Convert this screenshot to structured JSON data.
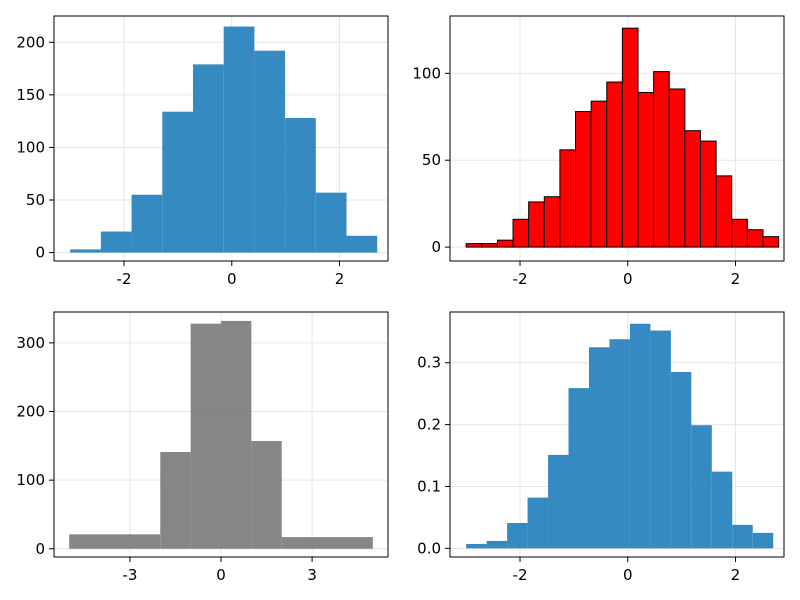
{
  "chart_data": [
    {
      "type": "bar",
      "panel": "top-left",
      "color": "#2a84bf",
      "grid": true,
      "bins": [
        {
          "x0": -3.0,
          "x1": -2.43,
          "value": 3
        },
        {
          "x0": -2.43,
          "x1": -1.86,
          "value": 20
        },
        {
          "x0": -1.86,
          "x1": -1.29,
          "value": 55
        },
        {
          "x0": -1.29,
          "x1": -0.72,
          "value": 134
        },
        {
          "x0": -0.72,
          "x1": -0.15,
          "value": 179
        },
        {
          "x0": -0.15,
          "x1": 0.42,
          "value": 215
        },
        {
          "x0": 0.42,
          "x1": 0.99,
          "value": 192
        },
        {
          "x0": 0.99,
          "x1": 1.56,
          "value": 128
        },
        {
          "x0": 1.56,
          "x1": 2.13,
          "value": 57
        },
        {
          "x0": 2.13,
          "x1": 2.7,
          "value": 16
        }
      ],
      "xlim": [
        -3.3,
        2.9
      ],
      "ylim": [
        -8,
        225
      ],
      "xticks": [
        -2,
        0,
        2
      ],
      "xtick_labels": [
        "-2",
        "0",
        "2"
      ],
      "yticks": [
        0,
        50,
        100,
        150,
        200
      ],
      "ytick_labels": [
        "0",
        "50",
        "100",
        "150",
        "200"
      ]
    },
    {
      "type": "bar",
      "panel": "top-right",
      "color": "#ff0000",
      "edge_color": "#000000",
      "grid": true,
      "bins": [
        {
          "x0": -3.0,
          "x1": -2.71,
          "value": 2
        },
        {
          "x0": -2.71,
          "x1": -2.42,
          "value": 2
        },
        {
          "x0": -2.42,
          "x1": -2.13,
          "value": 4
        },
        {
          "x0": -2.13,
          "x1": -1.84,
          "value": 16
        },
        {
          "x0": -1.84,
          "x1": -1.55,
          "value": 26
        },
        {
          "x0": -1.55,
          "x1": -1.26,
          "value": 29
        },
        {
          "x0": -1.26,
          "x1": -0.97,
          "value": 56
        },
        {
          "x0": -0.97,
          "x1": -0.68,
          "value": 78
        },
        {
          "x0": -0.68,
          "x1": -0.39,
          "value": 84
        },
        {
          "x0": -0.39,
          "x1": -0.1,
          "value": 95
        },
        {
          "x0": -0.1,
          "x1": 0.19,
          "value": 126
        },
        {
          "x0": 0.19,
          "x1": 0.48,
          "value": 89
        },
        {
          "x0": 0.48,
          "x1": 0.77,
          "value": 101
        },
        {
          "x0": 0.77,
          "x1": 1.06,
          "value": 91
        },
        {
          "x0": 1.06,
          "x1": 1.35,
          "value": 67
        },
        {
          "x0": 1.35,
          "x1": 1.64,
          "value": 61
        },
        {
          "x0": 1.64,
          "x1": 1.93,
          "value": 41
        },
        {
          "x0": 1.93,
          "x1": 2.22,
          "value": 16
        },
        {
          "x0": 2.22,
          "x1": 2.51,
          "value": 10
        },
        {
          "x0": 2.51,
          "x1": 2.8,
          "value": 6
        }
      ],
      "xlim": [
        -3.3,
        2.9
      ],
      "ylim": [
        -8,
        133
      ],
      "xticks": [
        -2,
        0,
        2
      ],
      "xtick_labels": [
        "-2",
        "0",
        "2"
      ],
      "yticks": [
        0,
        50,
        100
      ],
      "ytick_labels": [
        "0",
        "50",
        "100"
      ]
    },
    {
      "type": "bar",
      "panel": "bottom-left",
      "color": "#808080",
      "grid": true,
      "bins": [
        {
          "x0": -5.0,
          "x1": -2.0,
          "value": 21
        },
        {
          "x0": -2.0,
          "x1": -1.0,
          "value": 141
        },
        {
          "x0": -1.0,
          "x1": 0.0,
          "value": 328
        },
        {
          "x0": 0.0,
          "x1": 1.0,
          "value": 332
        },
        {
          "x0": 1.0,
          "x1": 2.0,
          "value": 157
        },
        {
          "x0": 2.0,
          "x1": 5.0,
          "value": 17
        }
      ],
      "xlim": [
        -5.5,
        5.5
      ],
      "ylim": [
        -12,
        345
      ],
      "xticks": [
        -3,
        0,
        3
      ],
      "xtick_labels": [
        "-3",
        "0",
        "3"
      ],
      "yticks": [
        0,
        100,
        200,
        300
      ],
      "ytick_labels": [
        "0",
        "100",
        "200",
        "300"
      ]
    },
    {
      "type": "bar",
      "panel": "bottom-right",
      "color": "#2a84bf",
      "grid": true,
      "bins": [
        {
          "x0": -3.0,
          "x1": -2.62,
          "value": 0.007
        },
        {
          "x0": -2.62,
          "x1": -2.24,
          "value": 0.012
        },
        {
          "x0": -2.24,
          "x1": -1.86,
          "value": 0.041
        },
        {
          "x0": -1.86,
          "x1": -1.48,
          "value": 0.082
        },
        {
          "x0": -1.48,
          "x1": -1.1,
          "value": 0.151
        },
        {
          "x0": -1.1,
          "x1": -0.72,
          "value": 0.259
        },
        {
          "x0": -0.72,
          "x1": -0.34,
          "value": 0.325
        },
        {
          "x0": -0.34,
          "x1": 0.04,
          "value": 0.338
        },
        {
          "x0": 0.04,
          "x1": 0.42,
          "value": 0.363
        },
        {
          "x0": 0.42,
          "x1": 0.8,
          "value": 0.352
        },
        {
          "x0": 0.8,
          "x1": 1.18,
          "value": 0.285
        },
        {
          "x0": 1.18,
          "x1": 1.56,
          "value": 0.199
        },
        {
          "x0": 1.56,
          "x1": 1.94,
          "value": 0.124
        },
        {
          "x0": 1.94,
          "x1": 2.32,
          "value": 0.038
        },
        {
          "x0": 2.32,
          "x1": 2.7,
          "value": 0.025
        }
      ],
      "xlim": [
        -3.3,
        2.9
      ],
      "ylim": [
        -0.014,
        0.382
      ],
      "xticks": [
        -2,
        0,
        2
      ],
      "xtick_labels": [
        "-2",
        "0",
        "2"
      ],
      "yticks": [
        0.0,
        0.1,
        0.2,
        0.3
      ],
      "ytick_labels": [
        "0.0",
        "0.1",
        "0.2",
        "0.3"
      ]
    }
  ]
}
